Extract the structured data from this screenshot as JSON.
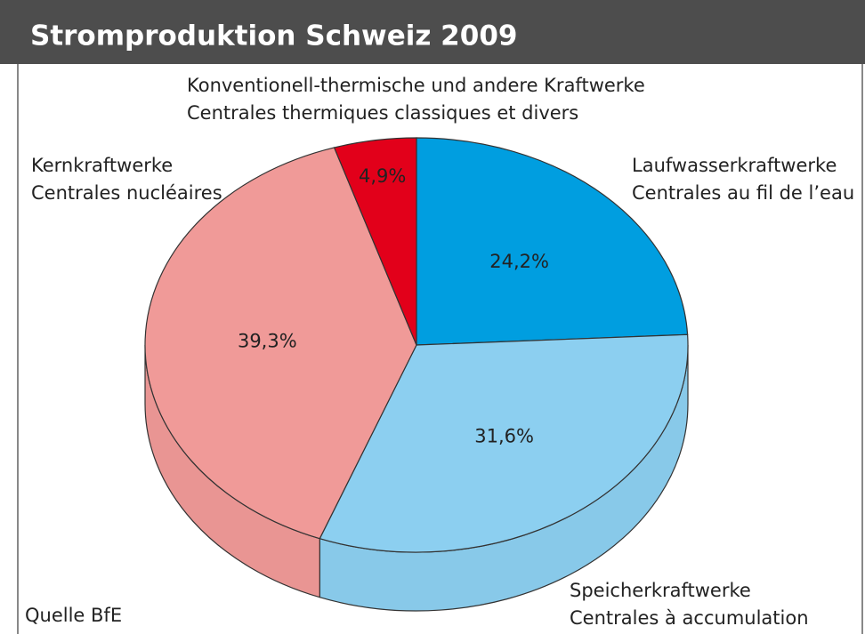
{
  "chart_data": {
    "type": "pie",
    "title": "Stromproduktion Schweiz 2009",
    "categories": [
      [
        "Laufwasserkraftwerke",
        "Centrales au fil de l’eau"
      ],
      [
        "Speicherkraftwerke",
        "Centrales à accumulation"
      ],
      [
        "Kernkraftwerke",
        "Centrales nucléaires"
      ],
      [
        "Konventionell-thermische und andere Kraftwerke",
        "Centrales thermiques classiques et divers"
      ]
    ],
    "values": [
      24.2,
      31.6,
      39.3,
      4.9
    ],
    "value_labels": [
      "24,2%",
      "31,6%",
      "39,3%",
      "4,9%"
    ],
    "colors": [
      "#009ee0",
      "#8ccff0",
      "#f09a98",
      "#e2001a"
    ],
    "source": "Quelle BfE"
  }
}
